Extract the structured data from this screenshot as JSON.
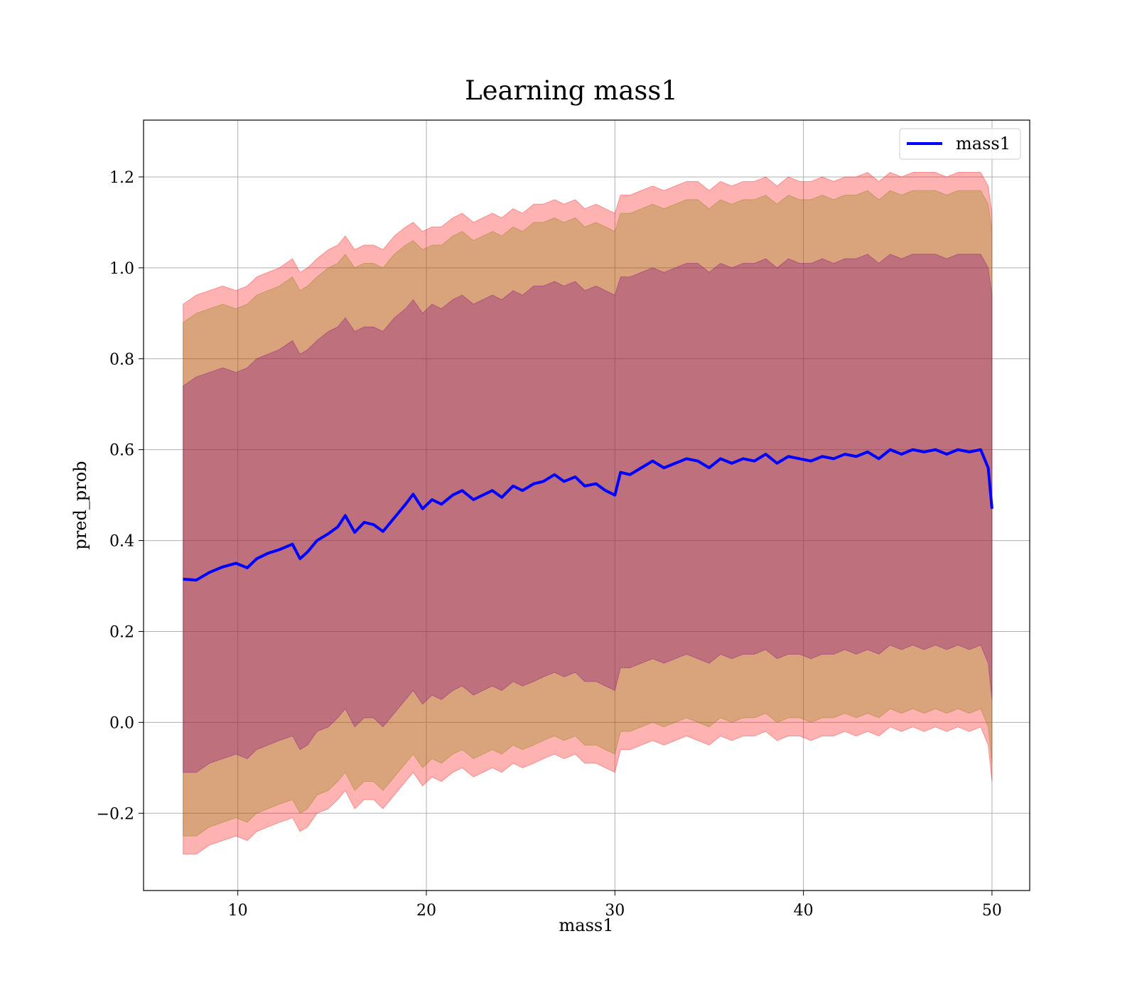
{
  "chart_data": {
    "type": "line",
    "title": "Learning mass1",
    "xlabel": "mass1",
    "ylabel": "pred_prob",
    "xlim": [
      5,
      52
    ],
    "ylim": [
      -0.37,
      1.325
    ],
    "x_ticks": [
      10,
      20,
      30,
      40,
      50
    ],
    "y_ticks": [
      -0.2,
      0.0,
      0.2,
      0.4,
      0.6,
      0.8,
      1.0,
      1.2
    ],
    "x_tick_labels": [
      "10",
      "20",
      "30",
      "40",
      "50"
    ],
    "y_tick_labels": [
      "−0.2",
      "0.0",
      "0.2",
      "0.4",
      "0.6",
      "0.8",
      "1.0",
      "1.2"
    ],
    "grid": true,
    "legend_position": "top-right",
    "series": [
      {
        "name": "mass1",
        "color": "#0000ff",
        "x": [
          7.1,
          7.8,
          8.5,
          9.2,
          9.9,
          10.5,
          11.0,
          11.6,
          12.2,
          12.9,
          13.3,
          13.7,
          14.2,
          14.8,
          15.3,
          15.7,
          16.2,
          16.7,
          17.2,
          17.7,
          18.3,
          18.9,
          19.3,
          19.8,
          20.3,
          20.8,
          21.4,
          21.9,
          22.5,
          23.0,
          23.5,
          24.0,
          24.6,
          25.1,
          25.7,
          26.2,
          26.8,
          27.3,
          27.9,
          28.4,
          29.0,
          29.5,
          30.0,
          30.3,
          30.8,
          31.4,
          32.0,
          32.6,
          33.2,
          33.8,
          34.4,
          35.0,
          35.6,
          36.2,
          36.8,
          37.4,
          38.0,
          38.6,
          39.2,
          39.8,
          40.4,
          41.0,
          41.6,
          42.2,
          42.8,
          43.4,
          44.0,
          44.6,
          45.2,
          45.8,
          46.4,
          47.0,
          47.6,
          48.2,
          48.8,
          49.4,
          49.8,
          50.0
        ],
        "values": [
          0.315,
          0.313,
          0.33,
          0.342,
          0.35,
          0.34,
          0.36,
          0.372,
          0.38,
          0.392,
          0.36,
          0.375,
          0.4,
          0.415,
          0.43,
          0.455,
          0.418,
          0.44,
          0.435,
          0.42,
          0.45,
          0.48,
          0.502,
          0.47,
          0.49,
          0.48,
          0.5,
          0.51,
          0.49,
          0.5,
          0.51,
          0.495,
          0.52,
          0.51,
          0.525,
          0.53,
          0.545,
          0.53,
          0.54,
          0.52,
          0.525,
          0.51,
          0.5,
          0.55,
          0.545,
          0.56,
          0.575,
          0.56,
          0.57,
          0.58,
          0.575,
          0.56,
          0.58,
          0.57,
          0.58,
          0.575,
          0.59,
          0.57,
          0.585,
          0.58,
          0.575,
          0.585,
          0.58,
          0.59,
          0.585,
          0.595,
          0.58,
          0.6,
          0.59,
          0.6,
          0.595,
          0.6,
          0.59,
          0.6,
          0.595,
          0.6,
          0.56,
          0.47
        ]
      }
    ],
    "bands": [
      {
        "color": "#ff0000",
        "opacity": 0.3,
        "upper": [
          0.92,
          0.94,
          0.95,
          0.96,
          0.95,
          0.96,
          0.98,
          0.99,
          1.0,
          1.02,
          0.99,
          1.0,
          1.02,
          1.04,
          1.05,
          1.07,
          1.04,
          1.05,
          1.05,
          1.04,
          1.07,
          1.09,
          1.1,
          1.08,
          1.09,
          1.09,
          1.11,
          1.12,
          1.1,
          1.11,
          1.12,
          1.11,
          1.13,
          1.12,
          1.14,
          1.14,
          1.15,
          1.14,
          1.15,
          1.13,
          1.14,
          1.13,
          1.12,
          1.16,
          1.16,
          1.17,
          1.18,
          1.17,
          1.18,
          1.19,
          1.19,
          1.17,
          1.19,
          1.18,
          1.19,
          1.19,
          1.2,
          1.18,
          1.2,
          1.19,
          1.19,
          1.2,
          1.19,
          1.2,
          1.2,
          1.21,
          1.19,
          1.21,
          1.2,
          1.21,
          1.21,
          1.21,
          1.2,
          1.21,
          1.21,
          1.21,
          1.18,
          1.12
        ],
        "lower": [
          -0.29,
          -0.29,
          -0.27,
          -0.26,
          -0.25,
          -0.26,
          -0.24,
          -0.23,
          -0.22,
          -0.21,
          -0.24,
          -0.23,
          -0.2,
          -0.19,
          -0.17,
          -0.15,
          -0.19,
          -0.17,
          -0.17,
          -0.19,
          -0.16,
          -0.13,
          -0.11,
          -0.14,
          -0.12,
          -0.13,
          -0.11,
          -0.1,
          -0.12,
          -0.11,
          -0.1,
          -0.11,
          -0.09,
          -0.1,
          -0.09,
          -0.08,
          -0.07,
          -0.08,
          -0.07,
          -0.09,
          -0.09,
          -0.1,
          -0.11,
          -0.06,
          -0.06,
          -0.05,
          -0.04,
          -0.05,
          -0.04,
          -0.03,
          -0.04,
          -0.05,
          -0.03,
          -0.04,
          -0.03,
          -0.03,
          -0.02,
          -0.04,
          -0.03,
          -0.03,
          -0.04,
          -0.03,
          -0.03,
          -0.02,
          -0.03,
          -0.02,
          -0.03,
          -0.01,
          -0.02,
          -0.01,
          -0.02,
          -0.01,
          -0.02,
          -0.01,
          -0.02,
          -0.01,
          -0.05,
          -0.13
        ]
      },
      {
        "color": "#808000",
        "opacity": 0.3,
        "upper": [
          0.88,
          0.9,
          0.91,
          0.92,
          0.91,
          0.92,
          0.94,
          0.95,
          0.96,
          0.98,
          0.95,
          0.96,
          0.98,
          1.0,
          1.01,
          1.03,
          1.0,
          1.01,
          1.01,
          1.0,
          1.03,
          1.05,
          1.06,
          1.04,
          1.05,
          1.05,
          1.07,
          1.08,
          1.06,
          1.07,
          1.08,
          1.07,
          1.09,
          1.08,
          1.1,
          1.1,
          1.11,
          1.1,
          1.11,
          1.09,
          1.1,
          1.09,
          1.08,
          1.12,
          1.12,
          1.13,
          1.14,
          1.13,
          1.14,
          1.15,
          1.15,
          1.13,
          1.15,
          1.14,
          1.15,
          1.15,
          1.16,
          1.14,
          1.16,
          1.15,
          1.15,
          1.16,
          1.15,
          1.16,
          1.16,
          1.17,
          1.15,
          1.17,
          1.16,
          1.17,
          1.17,
          1.17,
          1.16,
          1.17,
          1.17,
          1.17,
          1.14,
          1.08
        ],
        "lower": [
          -0.25,
          -0.25,
          -0.23,
          -0.22,
          -0.21,
          -0.22,
          -0.2,
          -0.19,
          -0.18,
          -0.17,
          -0.2,
          -0.19,
          -0.16,
          -0.15,
          -0.13,
          -0.11,
          -0.15,
          -0.13,
          -0.13,
          -0.15,
          -0.12,
          -0.09,
          -0.07,
          -0.1,
          -0.08,
          -0.09,
          -0.07,
          -0.06,
          -0.08,
          -0.07,
          -0.06,
          -0.07,
          -0.05,
          -0.06,
          -0.05,
          -0.04,
          -0.03,
          -0.04,
          -0.03,
          -0.05,
          -0.05,
          -0.06,
          -0.07,
          -0.02,
          -0.02,
          -0.01,
          0.0,
          -0.01,
          0.0,
          0.01,
          0.0,
          -0.01,
          0.01,
          0.0,
          0.01,
          0.01,
          0.02,
          0.0,
          0.01,
          0.01,
          0.0,
          0.01,
          0.01,
          0.02,
          0.01,
          0.02,
          0.01,
          0.03,
          0.02,
          0.03,
          0.02,
          0.03,
          0.02,
          0.03,
          0.02,
          0.03,
          -0.01,
          -0.09
        ]
      },
      {
        "color": "#800080",
        "opacity": 0.3,
        "upper": [
          0.74,
          0.76,
          0.77,
          0.78,
          0.77,
          0.78,
          0.8,
          0.81,
          0.82,
          0.84,
          0.81,
          0.82,
          0.84,
          0.86,
          0.87,
          0.89,
          0.86,
          0.87,
          0.87,
          0.86,
          0.89,
          0.91,
          0.93,
          0.9,
          0.92,
          0.91,
          0.93,
          0.94,
          0.92,
          0.93,
          0.94,
          0.93,
          0.95,
          0.94,
          0.96,
          0.96,
          0.97,
          0.96,
          0.97,
          0.95,
          0.96,
          0.95,
          0.94,
          0.98,
          0.98,
          0.99,
          1.0,
          0.99,
          1.0,
          1.01,
          1.01,
          0.99,
          1.01,
          1.0,
          1.01,
          1.01,
          1.02,
          1.0,
          1.02,
          1.01,
          1.01,
          1.02,
          1.01,
          1.02,
          1.02,
          1.03,
          1.01,
          1.03,
          1.02,
          1.03,
          1.03,
          1.03,
          1.02,
          1.03,
          1.03,
          1.03,
          1.0,
          0.94
        ],
        "lower": [
          -0.11,
          -0.11,
          -0.09,
          -0.08,
          -0.07,
          -0.08,
          -0.06,
          -0.05,
          -0.04,
          -0.03,
          -0.06,
          -0.05,
          -0.02,
          -0.01,
          0.01,
          0.03,
          -0.01,
          0.01,
          0.01,
          -0.01,
          0.02,
          0.05,
          0.07,
          0.04,
          0.06,
          0.05,
          0.07,
          0.08,
          0.06,
          0.07,
          0.08,
          0.07,
          0.09,
          0.08,
          0.09,
          0.1,
          0.11,
          0.1,
          0.11,
          0.09,
          0.09,
          0.08,
          0.07,
          0.12,
          0.12,
          0.13,
          0.14,
          0.13,
          0.14,
          0.15,
          0.14,
          0.13,
          0.15,
          0.14,
          0.15,
          0.15,
          0.16,
          0.14,
          0.15,
          0.15,
          0.14,
          0.15,
          0.15,
          0.16,
          0.15,
          0.16,
          0.15,
          0.17,
          0.16,
          0.17,
          0.16,
          0.17,
          0.16,
          0.17,
          0.16,
          0.17,
          0.13,
          0.05
        ]
      }
    ]
  }
}
